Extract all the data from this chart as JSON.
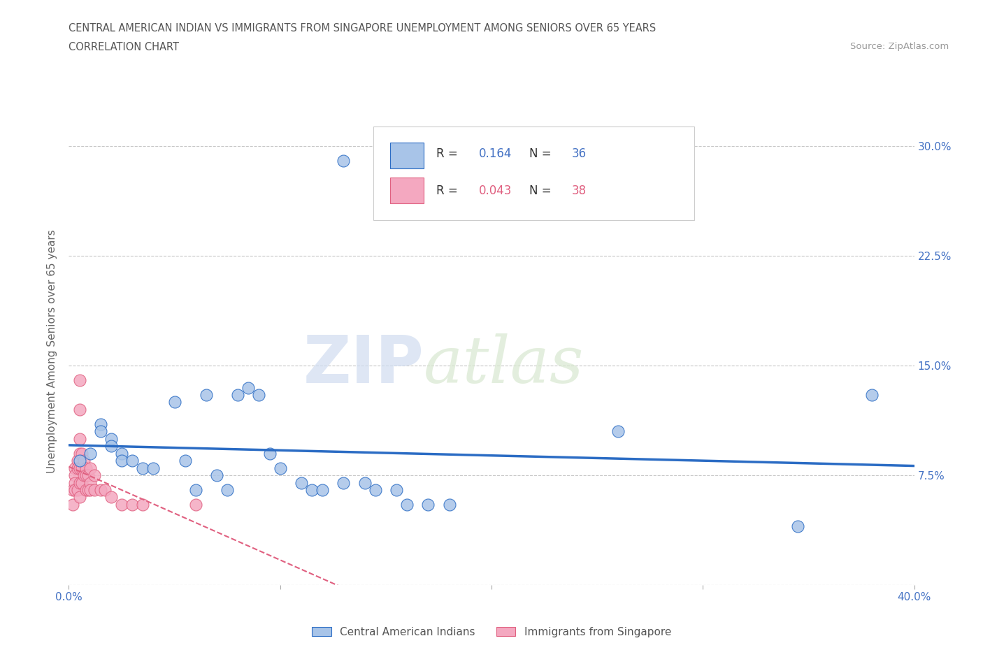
{
  "title_line1": "CENTRAL AMERICAN INDIAN VS IMMIGRANTS FROM SINGAPORE UNEMPLOYMENT AMONG SENIORS OVER 65 YEARS",
  "title_line2": "CORRELATION CHART",
  "source_text": "Source: ZipAtlas.com",
  "ylabel": "Unemployment Among Seniors over 65 years",
  "xlim": [
    0.0,
    0.4
  ],
  "ylim": [
    0.0,
    0.32
  ],
  "yticks": [
    0.0,
    0.075,
    0.15,
    0.225,
    0.3
  ],
  "ytick_labels_right": [
    "",
    "7.5%",
    "15.0%",
    "22.5%",
    "30.0%"
  ],
  "xticks": [
    0.0,
    0.1,
    0.2,
    0.3,
    0.4
  ],
  "xtick_labels": [
    "0.0%",
    "",
    "",
    "",
    "40.0%"
  ],
  "blue_R": 0.164,
  "blue_N": 36,
  "pink_R": 0.043,
  "pink_N": 38,
  "blue_color": "#A8C4E8",
  "pink_color": "#F4A8C0",
  "trend_blue_color": "#2B6CC4",
  "trend_pink_color": "#E06080",
  "tick_label_color": "#4472C4",
  "legend_label_blue": "Central American Indians",
  "legend_label_pink": "Immigrants from Singapore",
  "watermark_zip": "ZIP",
  "watermark_atlas": "atlas",
  "blue_x": [
    0.005,
    0.01,
    0.015,
    0.015,
    0.02,
    0.02,
    0.025,
    0.025,
    0.03,
    0.035,
    0.04,
    0.05,
    0.055,
    0.06,
    0.065,
    0.07,
    0.075,
    0.08,
    0.085,
    0.09,
    0.095,
    0.1,
    0.11,
    0.115,
    0.12,
    0.13,
    0.14,
    0.145,
    0.155,
    0.16,
    0.17,
    0.18,
    0.26,
    0.345,
    0.38,
    0.13
  ],
  "blue_y": [
    0.085,
    0.09,
    0.11,
    0.105,
    0.1,
    0.095,
    0.09,
    0.085,
    0.085,
    0.08,
    0.08,
    0.125,
    0.085,
    0.065,
    0.13,
    0.075,
    0.065,
    0.13,
    0.135,
    0.13,
    0.09,
    0.08,
    0.07,
    0.065,
    0.065,
    0.07,
    0.07,
    0.065,
    0.065,
    0.055,
    0.055,
    0.055,
    0.105,
    0.04,
    0.13,
    0.29
  ],
  "pink_x": [
    0.002,
    0.002,
    0.003,
    0.003,
    0.003,
    0.003,
    0.004,
    0.004,
    0.004,
    0.005,
    0.005,
    0.005,
    0.005,
    0.005,
    0.005,
    0.005,
    0.006,
    0.006,
    0.006,
    0.007,
    0.007,
    0.008,
    0.008,
    0.008,
    0.009,
    0.009,
    0.01,
    0.01,
    0.01,
    0.012,
    0.012,
    0.015,
    0.017,
    0.02,
    0.025,
    0.03,
    0.035,
    0.06
  ],
  "pink_y": [
    0.065,
    0.055,
    0.08,
    0.075,
    0.07,
    0.065,
    0.085,
    0.08,
    0.065,
    0.14,
    0.12,
    0.1,
    0.09,
    0.08,
    0.07,
    0.06,
    0.09,
    0.08,
    0.07,
    0.085,
    0.075,
    0.08,
    0.075,
    0.065,
    0.075,
    0.065,
    0.08,
    0.07,
    0.065,
    0.075,
    0.065,
    0.065,
    0.065,
    0.06,
    0.055,
    0.055,
    0.055,
    0.055
  ],
  "background_color": "#FFFFFF",
  "grid_color": "#C8C8C8"
}
